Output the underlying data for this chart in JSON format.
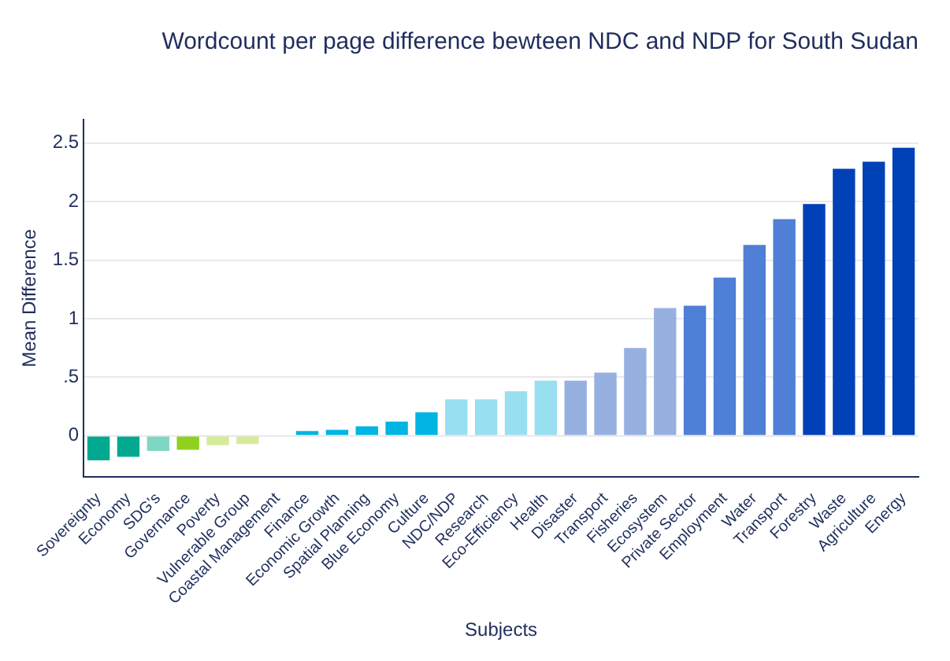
{
  "chart_data": {
    "type": "bar",
    "title": "Wordcount per page difference bewteen NDC and NDP for South Sudan",
    "xlabel": "Subjects",
    "ylabel": "Mean Difference",
    "categories": [
      "Sovereignty",
      "Economy",
      "SDG's",
      "Governance",
      "Poverty",
      "Vulnerable Group",
      "Coastal Management",
      "Finance",
      "Economic Growth",
      "Spatial Planning",
      "Blue Economy",
      "Culture",
      "NDC/NDP",
      "Research",
      "Eco-Efficiency",
      "Health",
      "Disaster",
      "Transport",
      "Fisheries",
      "Ecosystem",
      "Private Sector",
      "Employment",
      "Water",
      "Transport",
      "Forestry",
      "Waste",
      "Agriculture",
      "Energy"
    ],
    "values": [
      -0.21,
      -0.18,
      -0.13,
      -0.12,
      -0.08,
      -0.07,
      0,
      0.04,
      0.05,
      0.08,
      0.12,
      0.2,
      0.31,
      0.31,
      0.38,
      0.47,
      0.47,
      0.54,
      0.75,
      1.09,
      1.11,
      1.35,
      1.63,
      1.85,
      1.98,
      2.28,
      2.34,
      2.46
    ],
    "colors": [
      "#00a98f",
      "#00a98f",
      "#7fd6c3",
      "#8fd11e",
      "#d6eb9a",
      "#d6eb9a",
      "#d6eb9a",
      "#00b5e2",
      "#00b5e2",
      "#00b5e2",
      "#00b5e2",
      "#00b5e2",
      "#98dff0",
      "#98dff0",
      "#98dff0",
      "#98dff0",
      "#96b1e0",
      "#96b1e0",
      "#96b1e0",
      "#96b1e0",
      "#4f7fd6",
      "#4f7fd6",
      "#4f7fd6",
      "#4f7fd6",
      "#0041b8",
      "#0041b8",
      "#0041b8",
      "#0041b8"
    ],
    "ylim": [
      -0.35,
      2.7
    ],
    "yticks": [
      0,
      {
        "value": 0.5,
        "label": ".5"
      },
      1,
      1.5,
      2,
      2.5
    ],
    "grid": "y",
    "legend": false
  }
}
